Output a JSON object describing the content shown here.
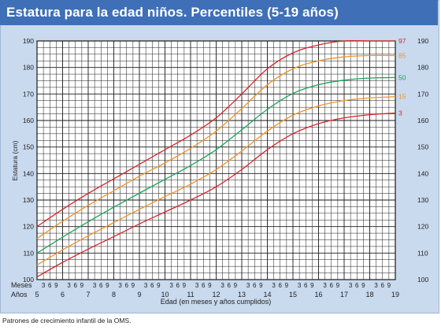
{
  "header": {
    "title": "Estatura para la edad niños. Percentiles (5-19 años)"
  },
  "footer": {
    "source": "Patrones de crecimiento infantil de la OMS."
  },
  "colors": {
    "frame": "#c9d9ee",
    "title_bar": "#3f6fb6",
    "grid": "#1a1a1a",
    "p97": "#d8232a",
    "p85": "#f0932b",
    "p50": "#1aa35a",
    "p15": "#f0932b",
    "p3": "#d8232a"
  },
  "chart_data": {
    "type": "line",
    "title": "Estatura para la edad niños. Percentiles (5-19 años)",
    "xlabel": "Edad (en meses y años cumplidos)",
    "ylabel": "Estatura (cm)",
    "x_unit": "years",
    "xlim": [
      5,
      19
    ],
    "ylim": [
      100,
      190
    ],
    "grid": true,
    "x_row_labels": {
      "months": "Meses",
      "years": "Años"
    },
    "year_ticks": [
      "5",
      "6",
      "7",
      "8",
      "9",
      "10",
      "11",
      "12",
      "13",
      "14",
      "15",
      "16",
      "17",
      "18",
      "19"
    ],
    "month_ticks": [
      "3",
      "6",
      "9"
    ],
    "y_ticks": [
      "100",
      "110",
      "120",
      "130",
      "140",
      "150",
      "160",
      "170",
      "180",
      "190"
    ],
    "series": [
      {
        "name": "97",
        "color": "#d8232a",
        "x": [
          5,
          6,
          7,
          8,
          9,
          10,
          11,
          12,
          13,
          14,
          15,
          16,
          17,
          18,
          19
        ],
        "y": [
          120,
          126.5,
          132.5,
          138,
          143.5,
          149,
          154.5,
          161,
          170,
          179.5,
          185.5,
          188.5,
          190,
          190,
          190
        ]
      },
      {
        "name": "85",
        "color": "#f0932b",
        "x": [
          5,
          6,
          7,
          8,
          9,
          10,
          11,
          12,
          13,
          14,
          15,
          16,
          17,
          18,
          19
        ],
        "y": [
          115.5,
          122,
          128,
          133.5,
          139,
          144,
          149.5,
          156,
          164.5,
          173.5,
          179.5,
          182.5,
          184,
          184.5,
          184.5
        ]
      },
      {
        "name": "50",
        "color": "#1aa35a",
        "x": [
          5,
          6,
          7,
          8,
          9,
          10,
          11,
          12,
          13,
          14,
          15,
          16,
          17,
          18,
          19
        ],
        "y": [
          110,
          116,
          121.8,
          127.3,
          132.6,
          137.8,
          143,
          149,
          156.5,
          164.2,
          170.2,
          173.5,
          175.2,
          176,
          176.2
        ]
      },
      {
        "name": "15",
        "color": "#f0932b",
        "x": [
          5,
          6,
          7,
          8,
          9,
          10,
          11,
          12,
          13,
          14,
          15,
          16,
          17,
          18,
          19
        ],
        "y": [
          105.5,
          111.2,
          116.5,
          121.5,
          126.5,
          131.3,
          136,
          141.5,
          148.5,
          156,
          162,
          165.5,
          167.5,
          168.5,
          169
        ]
      },
      {
        "name": "3",
        "color": "#d8232a",
        "x": [
          5,
          6,
          7,
          8,
          9,
          10,
          11,
          12,
          13,
          14,
          15,
          16,
          17,
          18,
          19
        ],
        "y": [
          101,
          106.5,
          111.5,
          116.2,
          121,
          125.5,
          130,
          135,
          141.5,
          149,
          155,
          158.8,
          161,
          162.2,
          162.8
        ]
      }
    ]
  }
}
